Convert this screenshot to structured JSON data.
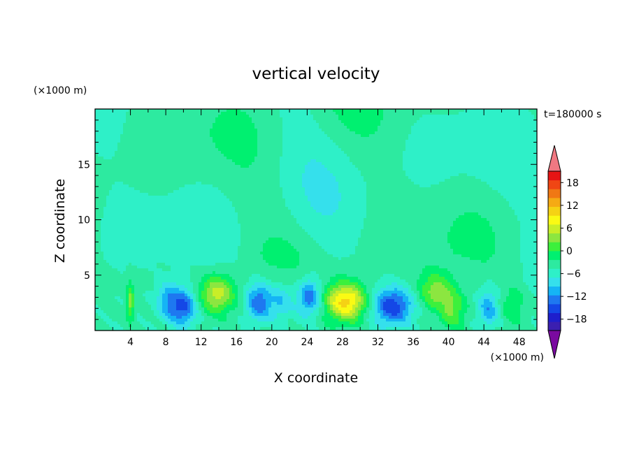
{
  "chart_data": {
    "type": "heatmap",
    "title": "vertical velocity",
    "time_label": "t=180000 s",
    "xlabel": "X coordinate",
    "ylabel": "Z coordinate",
    "x_unit": "(×1000 m)",
    "z_unit": "(×1000 m)",
    "xlim": [
      0,
      50
    ],
    "zlim": [
      0,
      20
    ],
    "x_ticks": [
      "4",
      "8",
      "12",
      "16",
      "20",
      "24",
      "28",
      "32",
      "36",
      "40",
      "44",
      "48"
    ],
    "z_ticks": [
      "5",
      "10",
      "15"
    ],
    "colorbar": {
      "min": -21,
      "max": 21,
      "step": 3,
      "tick_labels": [
        "18",
        "12",
        "6",
        "0",
        "−6",
        "−12",
        "−18"
      ],
      "colors": [
        "#7a0aa0",
        "#3b1fb0",
        "#1e1ecc",
        "#1447e6",
        "#1e78f0",
        "#15b4f5",
        "#35e0ec",
        "#2ef0c8",
        "#2deaa0",
        "#00f070",
        "#3cf03c",
        "#8ce640",
        "#c8ee28",
        "#fafa14",
        "#f5d214",
        "#f5aa14",
        "#f07814",
        "#f04614",
        "#e61414",
        "#f07882"
      ]
    },
    "features": [
      {
        "x": 4.0,
        "z": 2.6,
        "w": -1,
        "peak": 10
      },
      {
        "x": 10.0,
        "z": 2.1,
        "w": 0.9,
        "peak": -13
      },
      {
        "x": 8.2,
        "z": 2.8,
        "w": 0.7,
        "peak": -8
      },
      {
        "x": 13.8,
        "z": 3.3,
        "w": 1.4,
        "peak": 13
      },
      {
        "x": 18.5,
        "z": 2.6,
        "w": 0.8,
        "peak": -12
      },
      {
        "x": 21.0,
        "z": 2.6,
        "w": 0.8,
        "peak": -6
      },
      {
        "x": 24.3,
        "z": 3.0,
        "w": 0.7,
        "peak": -12
      },
      {
        "x": 28.4,
        "z": 2.6,
        "w": 1.8,
        "peak": 19
      },
      {
        "x": 33.6,
        "z": 2.2,
        "w": 1.8,
        "peak": -15
      },
      {
        "x": 38.5,
        "z": 3.6,
        "w": 1.4,
        "peak": 10
      },
      {
        "x": 40.5,
        "z": 1.8,
        "w": 0.8,
        "peak": 8
      },
      {
        "x": 44.5,
        "z": 2.0,
        "w": 0.5,
        "peak": -9
      },
      {
        "x": 47.3,
        "z": 2.2,
        "w": 0.7,
        "peak": 5
      }
    ]
  }
}
